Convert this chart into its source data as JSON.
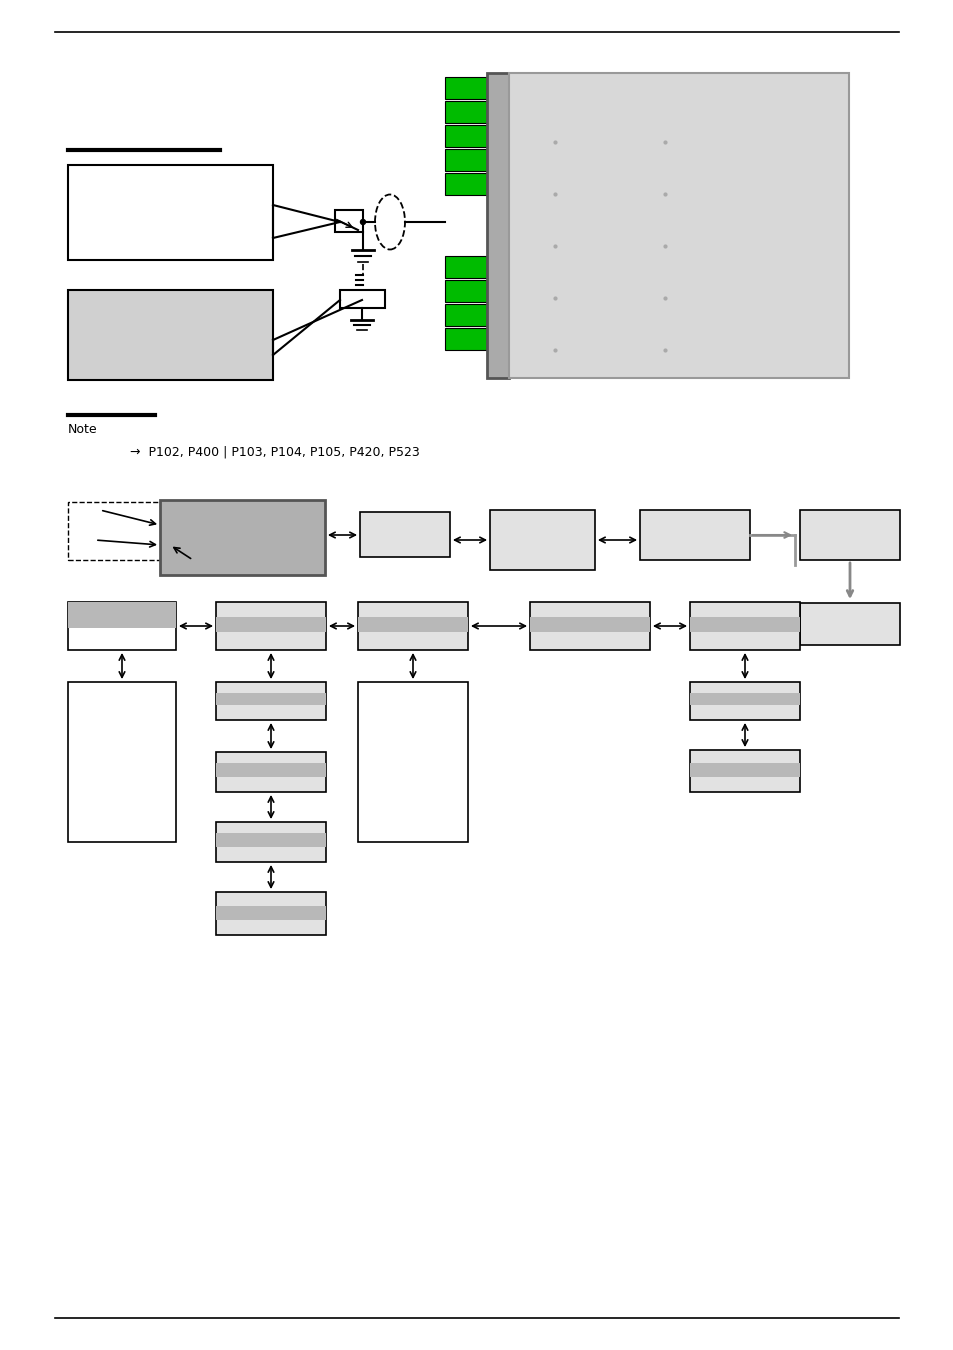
{
  "bg": "#ffffff",
  "black": "#000000",
  "green": "#00bb00",
  "lgray": "#d8d8d8",
  "mgray": "#b8b8b8",
  "dgray": "#808080",
  "boxgray": "#e2e2e2",
  "note_arrow": "→",
  "note_text": "P102, P400 | P103, P104, P105, P420, P523"
}
